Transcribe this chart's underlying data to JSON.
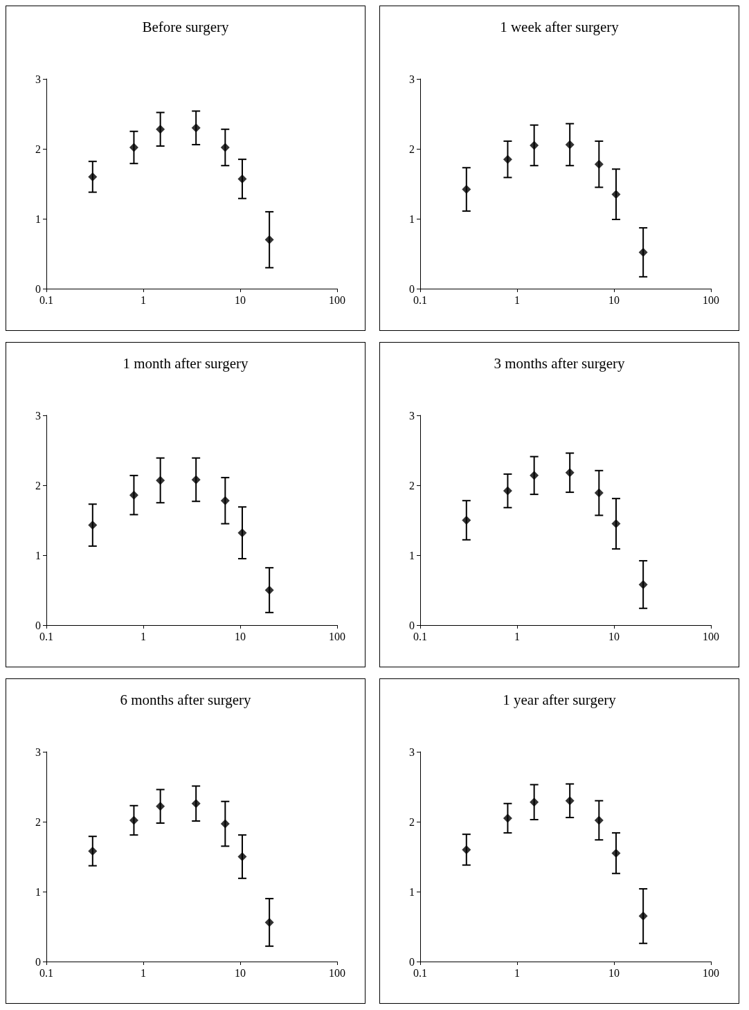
{
  "chart_data": [
    {
      "type": "scatter",
      "title": "Before surgery",
      "x": [
        0.3,
        0.8,
        1.5,
        3.5,
        7,
        10.5,
        20
      ],
      "values": [
        1.6,
        2.02,
        2.28,
        2.3,
        2.02,
        1.57,
        0.7
      ],
      "errors": [
        0.22,
        0.23,
        0.24,
        0.24,
        0.26,
        0.28,
        0.4
      ],
      "color": "#000000",
      "marker": "diamond",
      "log": "x",
      "xlim": [
        0.1,
        100
      ],
      "xticks": [
        0.1,
        1,
        10,
        100
      ],
      "ylim": [
        0,
        3
      ],
      "yticks": [
        0,
        1,
        2,
        3
      ]
    },
    {
      "type": "scatter",
      "title": "1 week after surgery",
      "x": [
        0.3,
        0.8,
        1.5,
        3.5,
        7,
        10.5,
        20
      ],
      "values": [
        1.42,
        1.85,
        2.05,
        2.06,
        1.78,
        1.35,
        0.52
      ],
      "errors": [
        0.31,
        0.26,
        0.29,
        0.3,
        0.33,
        0.36,
        0.35
      ],
      "color": "#000000",
      "marker": "diamond",
      "log": "x",
      "xlim": [
        0.1,
        100
      ],
      "xticks": [
        0.1,
        1,
        10,
        100
      ],
      "ylim": [
        0,
        3
      ],
      "yticks": [
        0,
        1,
        2,
        3
      ]
    },
    {
      "type": "scatter",
      "title": "1 month after surgery",
      "x": [
        0.3,
        0.8,
        1.5,
        3.5,
        7,
        10.5,
        20
      ],
      "values": [
        1.43,
        1.86,
        2.07,
        2.08,
        1.78,
        1.32,
        0.5
      ],
      "errors": [
        0.3,
        0.28,
        0.32,
        0.31,
        0.33,
        0.37,
        0.32
      ],
      "color": "#000000",
      "marker": "diamond",
      "log": "x",
      "xlim": [
        0.1,
        100
      ],
      "xticks": [
        0.1,
        1,
        10,
        100
      ],
      "ylim": [
        0,
        3
      ],
      "yticks": [
        0,
        1,
        2,
        3
      ]
    },
    {
      "type": "scatter",
      "title": "3 months after surgery",
      "x": [
        0.3,
        0.8,
        1.5,
        3.5,
        7,
        10.5,
        20
      ],
      "values": [
        1.5,
        1.92,
        2.14,
        2.18,
        1.89,
        1.45,
        0.58
      ],
      "errors": [
        0.28,
        0.24,
        0.27,
        0.28,
        0.32,
        0.36,
        0.34
      ],
      "color": "#000000",
      "marker": "diamond",
      "log": "x",
      "xlim": [
        0.1,
        100
      ],
      "xticks": [
        0.1,
        1,
        10,
        100
      ],
      "ylim": [
        0,
        3
      ],
      "yticks": [
        0,
        1,
        2,
        3
      ]
    },
    {
      "type": "scatter",
      "title": "6 months after surgery",
      "x": [
        0.3,
        0.8,
        1.5,
        3.5,
        7,
        10.5,
        20
      ],
      "values": [
        1.58,
        2.02,
        2.22,
        2.26,
        1.97,
        1.5,
        0.56
      ],
      "errors": [
        0.21,
        0.21,
        0.24,
        0.25,
        0.32,
        0.31,
        0.34
      ],
      "color": "#000000",
      "marker": "diamond",
      "log": "x",
      "xlim": [
        0.1,
        100
      ],
      "xticks": [
        0.1,
        1,
        10,
        100
      ],
      "ylim": [
        0,
        3
      ],
      "yticks": [
        0,
        1,
        2,
        3
      ]
    },
    {
      "type": "scatter",
      "title": "1 year after surgery",
      "x": [
        0.3,
        0.8,
        1.5,
        3.5,
        7,
        10.5,
        20
      ],
      "values": [
        1.6,
        2.05,
        2.28,
        2.3,
        2.02,
        1.55,
        0.65
      ],
      "errors": [
        0.22,
        0.21,
        0.25,
        0.24,
        0.28,
        0.29,
        0.39
      ],
      "color": "#000000",
      "marker": "diamond",
      "log": "x",
      "xlim": [
        0.1,
        100
      ],
      "xticks": [
        0.1,
        1,
        10,
        100
      ],
      "ylim": [
        0,
        3
      ],
      "yticks": [
        0,
        1,
        2,
        3
      ]
    }
  ]
}
